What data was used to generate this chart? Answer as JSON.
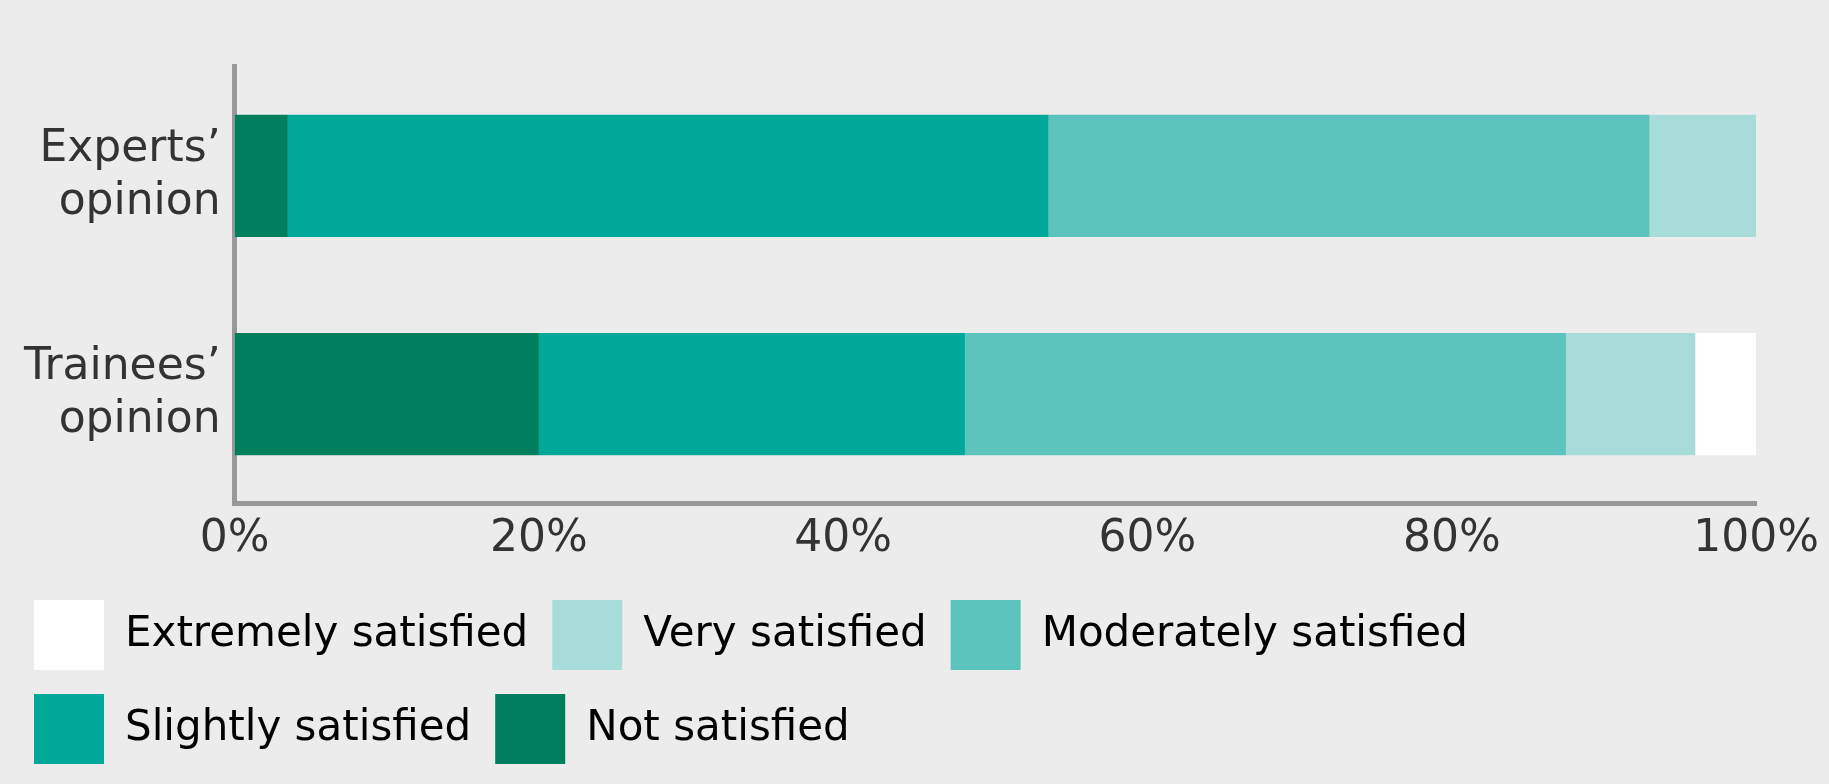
{
  "chart_data": {
    "type": "bar",
    "orientation": "horizontal",
    "stacked": true,
    "categories": [
      "Experts’ opinion",
      "Trainees’ opinion"
    ],
    "series": [
      {
        "name": "Not satisfied",
        "color": "#007f5f",
        "values": [
          3.5,
          20
        ]
      },
      {
        "name": "Slightly satisfied",
        "color": "#00a89a",
        "values": [
          50,
          28
        ]
      },
      {
        "name": "Moderately satisfied",
        "color": "#5cc4bd",
        "values": [
          39.5,
          39.5
        ]
      },
      {
        "name": "Very satisfied",
        "color": "#a8dcd8",
        "values": [
          7,
          8.5
        ]
      },
      {
        "name": "Extremely satisfied",
        "color": "#ffffff",
        "values": [
          0,
          4
        ]
      }
    ],
    "xlim": [
      0,
      100
    ],
    "xticks": [
      {
        "value": 0,
        "label": "0%"
      },
      {
        "value": 20,
        "label": "20%"
      },
      {
        "value": 40,
        "label": "40%"
      },
      {
        "value": 60,
        "label": "60%"
      },
      {
        "value": 80,
        "label": "80%"
      },
      {
        "value": 100,
        "label": "100%"
      }
    ],
    "grid": false,
    "legend": "bottom"
  }
}
